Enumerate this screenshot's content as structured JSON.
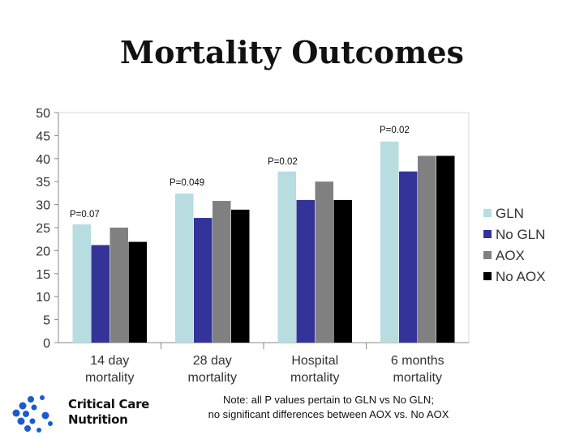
{
  "slide": {
    "title": "Mortality Outcomes",
    "note_line1": "Note: all P values pertain to GLN vs No GLN;",
    "note_line2": "no significant differences between AOX vs. No AOX",
    "logo_line1": "Critical Care",
    "logo_line2": "Nutrition",
    "logo_color": "#1a5ccc"
  },
  "chart_data": {
    "type": "bar",
    "categories": [
      [
        "14 day",
        "mortality"
      ],
      [
        "28 day",
        "mortality"
      ],
      [
        "Hospital",
        "mortality"
      ],
      [
        "6 months",
        "mortality"
      ]
    ],
    "series": [
      {
        "name": "GLN",
        "color": "#b7dde1",
        "values": [
          25.7,
          32.4,
          37.2,
          43.7
        ]
      },
      {
        "name": "No GLN",
        "color": "#333399",
        "values": [
          21.2,
          27.1,
          31.0,
          37.2
        ]
      },
      {
        "name": "AOX",
        "color": "#808080",
        "values": [
          25.0,
          30.8,
          35.0,
          40.6
        ]
      },
      {
        "name": "No AOX",
        "color": "#000000",
        "values": [
          21.9,
          28.9,
          31.0,
          40.6
        ]
      }
    ],
    "annotations": [
      "P=0.07",
      "P=0.049",
      "P=0.02",
      "P=0.02"
    ],
    "ylim": [
      0,
      50
    ],
    "yticks": [
      0,
      5,
      10,
      15,
      20,
      25,
      30,
      35,
      40,
      45,
      50
    ],
    "legend": "right",
    "grid": false
  }
}
